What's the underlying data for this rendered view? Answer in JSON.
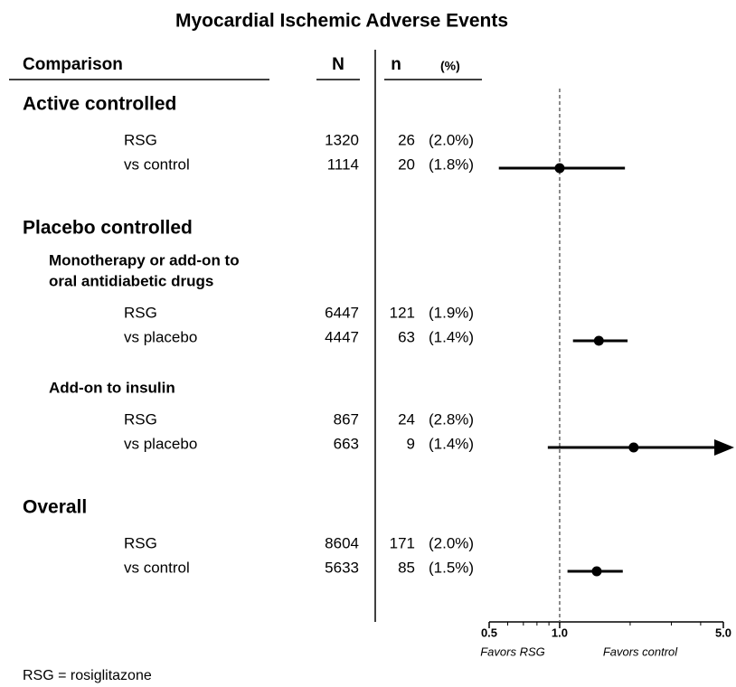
{
  "chart_data": {
    "type": "forest",
    "title": "Myocardial Ischemic Adverse Events",
    "columns": {
      "comparison": "Comparison",
      "N": "N",
      "n": "n",
      "pct": "(%)"
    },
    "groups": [
      {
        "name": "Active controlled",
        "rows": [
          {
            "label": "RSG",
            "N": 1320,
            "n": 26,
            "pct": "(2.0%)"
          },
          {
            "label": "vs control",
            "N": 1114,
            "n": 20,
            "pct": "(1.8%)"
          }
        ],
        "estimate": {
          "or": 1.0,
          "ci_low": 0.55,
          "ci_high": 1.9
        }
      },
      {
        "name": "Placebo controlled",
        "subgroups": [
          {
            "name": [
              "Monotherapy or add-on to",
              "oral antidiabetic drugs"
            ],
            "rows": [
              {
                "label": "RSG",
                "N": 6447,
                "n": 121,
                "pct": "(1.9%)"
              },
              {
                "label": "vs placebo",
                "N": 4447,
                "n": 63,
                "pct": "(1.4%)"
              }
            ],
            "estimate": {
              "or": 1.47,
              "ci_low": 1.14,
              "ci_high": 1.95
            }
          },
          {
            "name": [
              "Add-on to insulin"
            ],
            "rows": [
              {
                "label": "RSG",
                "N": 867,
                "n": 24,
                "pct": "(2.8%)"
              },
              {
                "label": "vs placebo",
                "N": 663,
                "n": 9,
                "pct": "(1.4%)"
              }
            ],
            "estimate": {
              "or": 2.07,
              "ci_low": 0.89,
              "ci_high": 5.5
            }
          }
        ]
      },
      {
        "name": "Overall",
        "rows": [
          {
            "label": "RSG",
            "N": 8604,
            "n": 171,
            "pct": "(2.0%)"
          },
          {
            "label": "vs control",
            "N": 5633,
            "n": 85,
            "pct": "(1.5%)"
          }
        ],
        "estimate": {
          "or": 1.44,
          "ci_low": 1.08,
          "ci_high": 1.86
        }
      }
    ],
    "xscale": "log",
    "xlim": [
      0.5,
      5.0
    ],
    "xticks": [
      0.5,
      {
        "value": 1.0,
        "label": "1.0"
      },
      {
        "value": 5.0,
        "label": "5.0"
      }
    ],
    "xminor_ticks": [
      0.6,
      0.7,
      0.8,
      0.9,
      2,
      3,
      4
    ],
    "x_annotations": [
      "Favors RSG",
      "Favors control"
    ],
    "color": "#000000",
    "footnote": "RSG = rosiglitazone"
  }
}
